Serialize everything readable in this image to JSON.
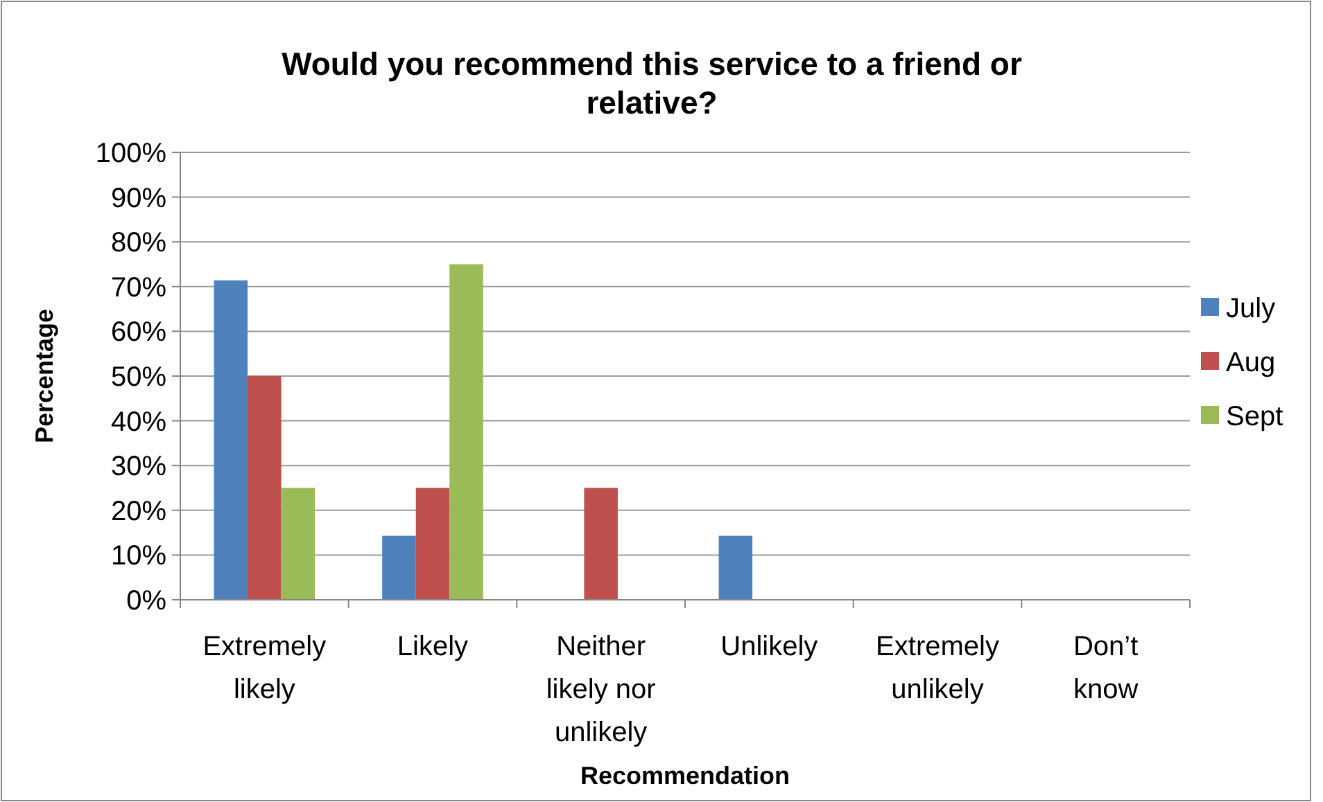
{
  "chart_data": {
    "type": "bar",
    "title": "Would you recommend this service to a friend or relative?",
    "xlabel": "Recommendation",
    "ylabel": "Percentage",
    "categories": [
      "Extremely likely",
      "Likely",
      "Neither likely nor unlikely",
      "Unlikely",
      "Extremely unlikely",
      "Don’t know"
    ],
    "series": [
      {
        "name": "July",
        "color": "#4f81bd",
        "values": [
          71.4,
          14.3,
          0,
          14.3,
          0,
          0
        ]
      },
      {
        "name": "Aug",
        "color": "#c0504d",
        "values": [
          50,
          25,
          25,
          0,
          0,
          0
        ]
      },
      {
        "name": "Sept",
        "color": "#9bbb59",
        "values": [
          25,
          75,
          0,
          0,
          0,
          0
        ]
      }
    ],
    "ylim": [
      0,
      100
    ],
    "yticks": [
      {
        "value": 0,
        "label": "0%"
      },
      {
        "value": 10,
        "label": "10%"
      },
      {
        "value": 20,
        "label": "20%"
      },
      {
        "value": 30,
        "label": "30%"
      },
      {
        "value": 40,
        "label": "40%"
      },
      {
        "value": 50,
        "label": "50%"
      },
      {
        "value": 60,
        "label": "60%"
      },
      {
        "value": 70,
        "label": "70%"
      },
      {
        "value": 80,
        "label": "80%"
      },
      {
        "value": 90,
        "label": "90%"
      },
      {
        "value": 100,
        "label": "100%"
      }
    ],
    "grid": "y",
    "legend": "right"
  }
}
